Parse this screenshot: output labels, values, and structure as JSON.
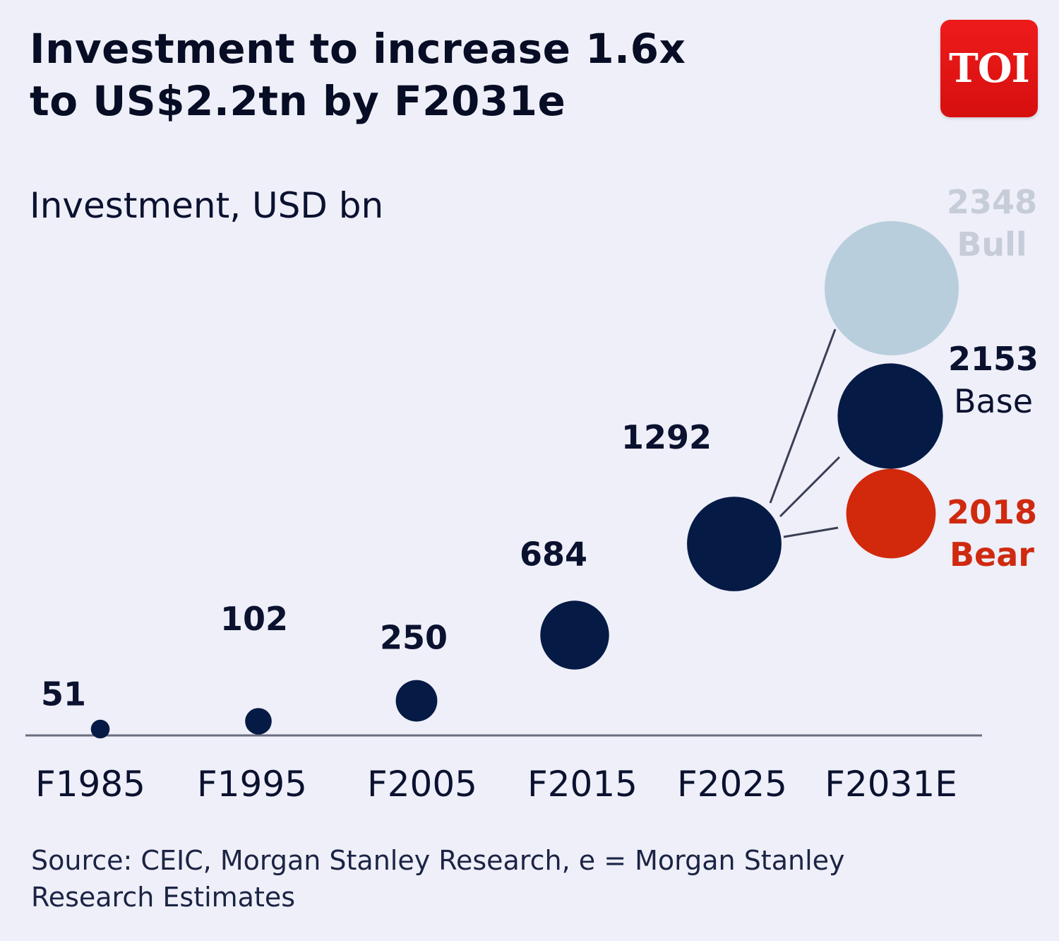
{
  "header": {
    "title_line1": "Investment to increase 1.6x",
    "title_line2": "to US$2.2tn by F2031e",
    "logo_text": "TOI"
  },
  "chart_data": {
    "type": "scatter",
    "title": "Investment to increase 1.6x to US$2.2tn by F2031e",
    "ylabel": "Investment, USD bn",
    "xlabel": "",
    "categories": [
      "F1985",
      "F1995",
      "F2005",
      "F2015",
      "F2025",
      "F2031E"
    ],
    "points": [
      {
        "x": "F1985",
        "value": 51,
        "label": "51"
      },
      {
        "x": "F1995",
        "value": 102,
        "label": "102"
      },
      {
        "x": "F2005",
        "value": 250,
        "label": "250"
      },
      {
        "x": "F2015",
        "value": 684,
        "label": "684"
      },
      {
        "x": "F2025",
        "value": 1292,
        "label": "1292"
      }
    ],
    "scenarios": [
      {
        "x": "F2031E",
        "value": 2348,
        "label": "2348",
        "name": "Bull",
        "color": "#b8cedd",
        "label_color": "#c6cdd8"
      },
      {
        "x": "F2031E",
        "value": 2153,
        "label": "2153",
        "name": "Base",
        "color": "#051a45",
        "label_color": "#0b1230"
      },
      {
        "x": "F2031E",
        "value": 2018,
        "label": "2018",
        "name": "Bear",
        "color": "#d2280c",
        "label_color": "#cf2a10"
      }
    ],
    "colors": {
      "historical": "#051a45",
      "axis": "#6a6e80",
      "connector": "#3a3f55"
    }
  },
  "footer": {
    "source_line1": "Source: CEIC, Morgan Stanley Research, e = Morgan Stanley",
    "source_line2": "Research Estimates"
  }
}
